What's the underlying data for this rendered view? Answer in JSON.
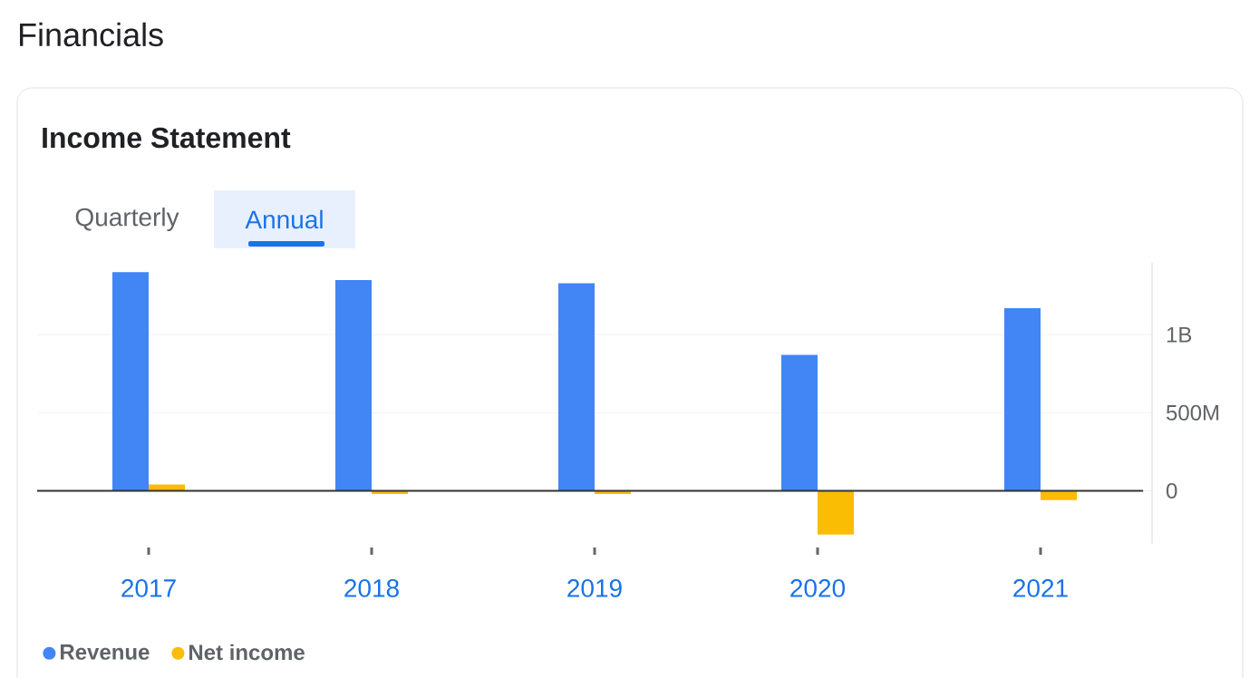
{
  "chart_data": {
    "type": "bar",
    "title": "Financials",
    "subtitle": "Income Statement",
    "annotations": [
      "Quarterly",
      "Annual"
    ],
    "categories": [
      "2017",
      "2018",
      "2019",
      "2020",
      "2021"
    ],
    "series": [
      {
        "name": "Revenue",
        "color": "#4285f4",
        "values": [
          1400000000,
          1350000000,
          1330000000,
          870000000,
          1170000000
        ]
      },
      {
        "name": "Net income",
        "color": "#fbbc04",
        "values": [
          40000000,
          -20000000,
          -20000000,
          -280000000,
          -60000000
        ]
      }
    ],
    "ylim": [
      -340000000,
      1460000000
    ],
    "yticks": [
      {
        "value": 0,
        "label": "0"
      },
      {
        "value": 500000000,
        "label": "500M"
      },
      {
        "value": 1000000000,
        "label": "1B"
      }
    ],
    "grid": "y",
    "legend": "bottom left"
  }
}
